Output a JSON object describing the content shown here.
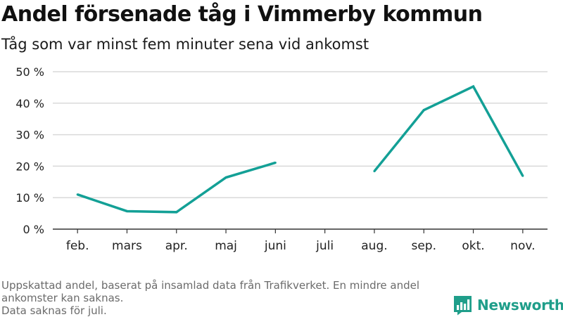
{
  "title": "Andel försenade tåg i Vimmerby kommun",
  "subtitle": "Tåg som var minst fem minuter sena vid ankomst",
  "footnote": {
    "line1": "Uppskattad andel, baserat på insamlad data från Trafikverket. En mindre andel ankomster kan saknas.",
    "line2": "Data saknas för juli."
  },
  "brand": {
    "name": "Newsworthy",
    "icon": "newsworthy-logo-icon"
  },
  "colors": {
    "line": "#13a096",
    "grid": "#d9d9d9",
    "axis": "#333333",
    "brand": "#1f9e8a"
  },
  "chart_data": {
    "type": "line",
    "title": "Andel försenade tåg i Vimmerby kommun",
    "subtitle": "Tåg som var minst fem minuter sena vid ankomst",
    "xlabel": "",
    "ylabel": "",
    "categories": [
      "feb.",
      "mars",
      "apr.",
      "maj",
      "juni",
      "juli",
      "aug.",
      "sep.",
      "okt.",
      "nov."
    ],
    "y_ticks": [
      0,
      10,
      20,
      30,
      40,
      50
    ],
    "y_tick_labels": [
      "0 %",
      "10 %",
      "20 %",
      "30 %",
      "40 %",
      "50 %"
    ],
    "ylim": [
      0,
      50
    ],
    "grid": true,
    "series": [
      {
        "name": "Andel försenade",
        "values": [
          11,
          5.7,
          5.4,
          16.4,
          21.1,
          null,
          18.4,
          37.8,
          45.3,
          16.9
        ]
      }
    ]
  }
}
